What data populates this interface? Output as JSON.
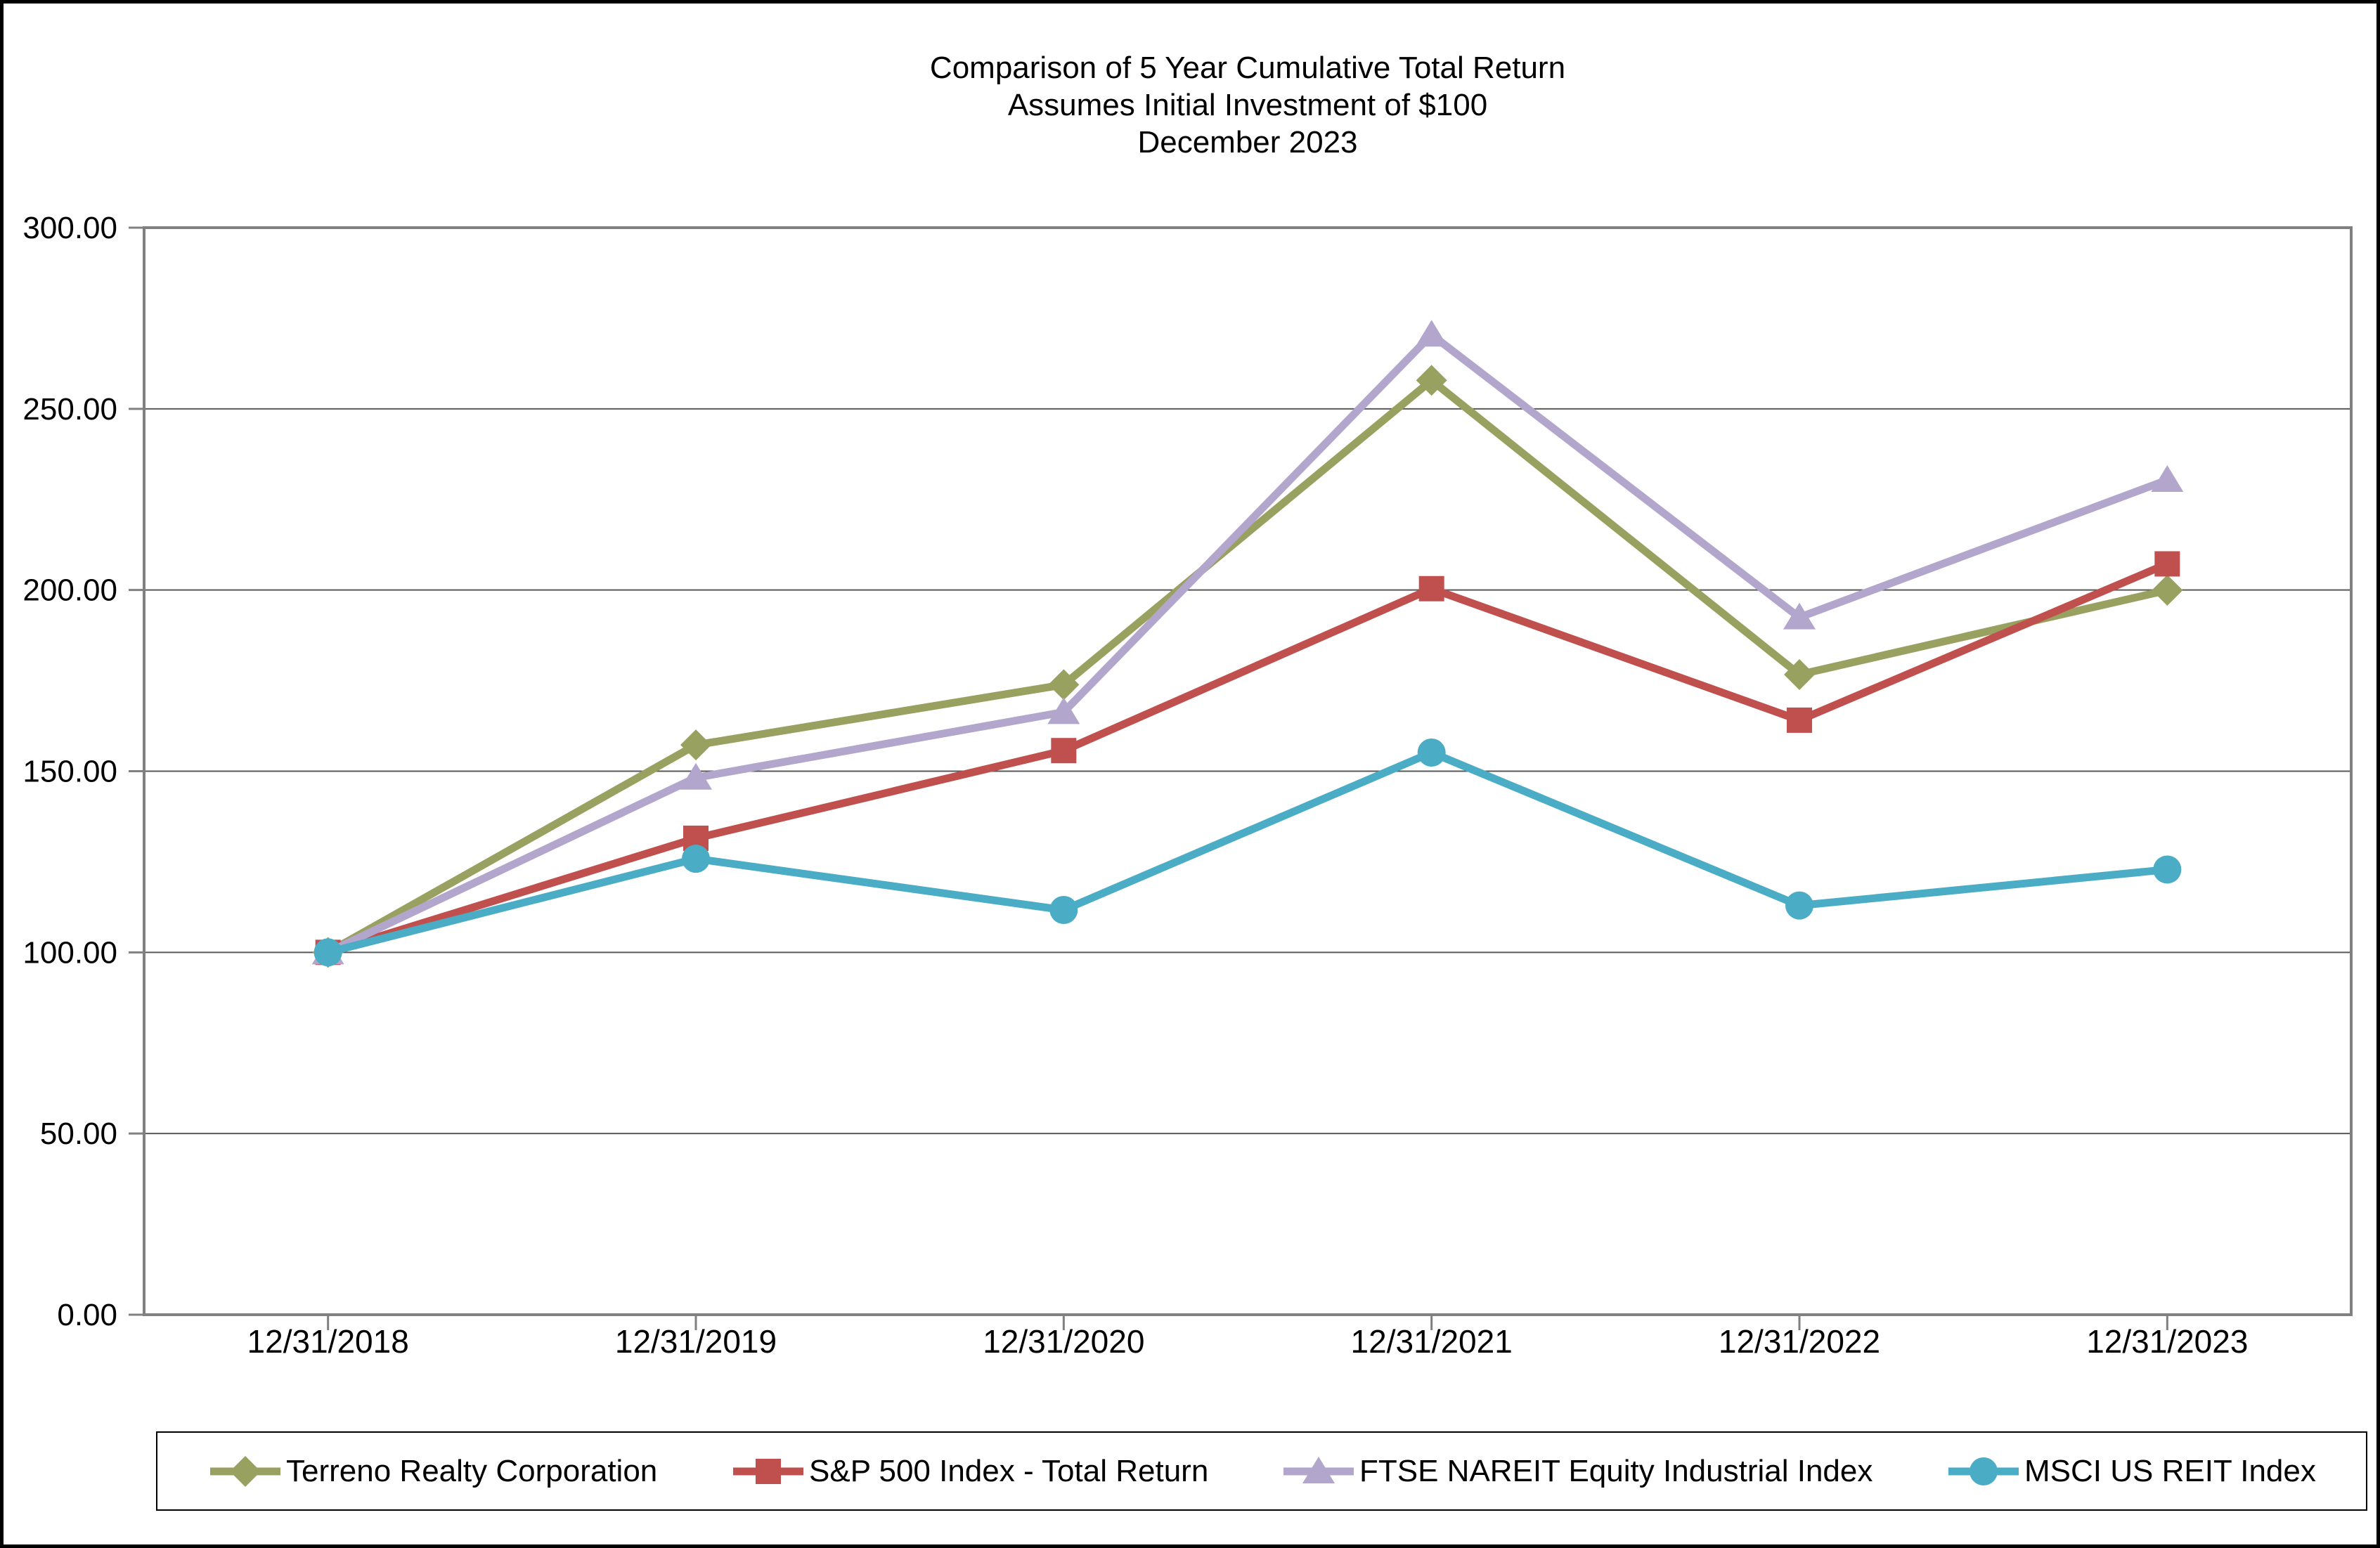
{
  "title_lines": [
    "Comparison of 5 Year Cumulative Total Return",
    "Assumes Initial Investment of $100",
    "December 2023"
  ],
  "chart_data": {
    "type": "line",
    "categories": [
      "12/31/2018",
      "12/31/2019",
      "12/31/2020",
      "12/31/2021",
      "12/31/2022",
      "12/31/2023"
    ],
    "series": [
      {
        "name": "Terreno Realty Corporation",
        "color": "#99A161",
        "marker": "diamond",
        "values": [
          100.0,
          157.24,
          173.87,
          257.86,
          176.67,
          199.94
        ]
      },
      {
        "name": "S&P 500 Index - Total Return",
        "color": "#C0504D",
        "marker": "square",
        "values": [
          100.0,
          131.49,
          155.68,
          200.37,
          164.08,
          207.21
        ]
      },
      {
        "name": "FTSE NAREIT Equity Industrial Index",
        "color": "#B3A6CD",
        "marker": "triangle",
        "values": [
          100.0,
          148.21,
          166.31,
          270.47,
          192.44,
          230.38
        ]
      },
      {
        "name": "MSCI US REIT Index",
        "color": "#4BACC6",
        "marker": "circle",
        "values": [
          100.0,
          125.84,
          111.7,
          155.14,
          112.93,
          122.86
        ]
      }
    ],
    "ylim": [
      0,
      300
    ],
    "ytick_step": 50,
    "ytick_labels": [
      "0.00",
      "50.00",
      "100.00",
      "150.00",
      "200.00",
      "250.00",
      "300.00"
    ],
    "xlabel": "",
    "ylabel": "",
    "grid": true,
    "legend_position": "bottom",
    "colors": {
      "axis": "#808080",
      "gridline": "#595959",
      "text": "#000000",
      "background": "#FFFFFF",
      "outer_border": "#000000"
    }
  }
}
